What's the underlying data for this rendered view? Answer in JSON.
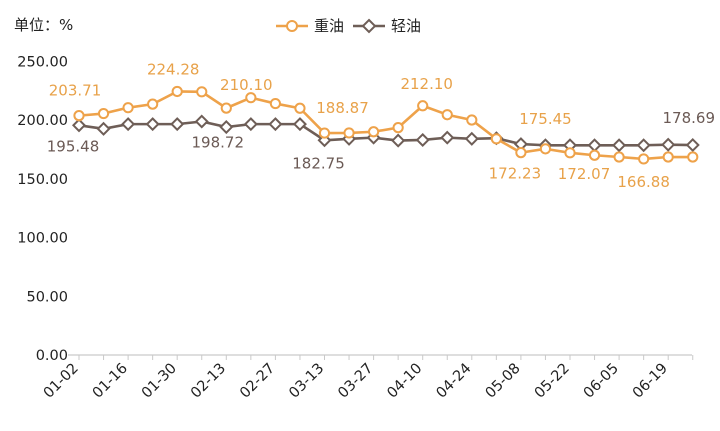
{
  "unit_label": "单位：%",
  "colors": {
    "heavy": "#eea24a",
    "light": "#6e5e57",
    "axis": "#c9c9c9"
  },
  "chart_data": {
    "type": "line",
    "title": "",
    "xlabel": "",
    "ylabel": "单位：%",
    "ylim": [
      0,
      250
    ],
    "yticks": [
      "0.00",
      "50.00",
      "100.00",
      "150.00",
      "200.00",
      "250.00"
    ],
    "x": [
      "01-02",
      "01-09",
      "01-16",
      "01-23",
      "01-30",
      "02-06",
      "02-13",
      "02-20",
      "02-27",
      "03-06",
      "03-13",
      "03-20",
      "03-27",
      "04-03",
      "04-10",
      "04-17",
      "04-24",
      "05-01",
      "05-08",
      "05-15",
      "05-22",
      "05-29",
      "06-05",
      "06-12",
      "06-19",
      "06-26"
    ],
    "xtick_labels": [
      "01-02",
      "01-16",
      "01-30",
      "02-13",
      "02-27",
      "03-13",
      "03-27",
      "04-10",
      "04-24",
      "05-08",
      "05-22",
      "06-05",
      "06-19"
    ],
    "legend_position": "top-center",
    "series": [
      {
        "name": "重油",
        "marker": "circle",
        "values": [
          203.71,
          205.5,
          210.5,
          213.5,
          224.28,
          224.0,
          210.1,
          219.0,
          214.0,
          210.0,
          188.87,
          189.0,
          190.0,
          193.5,
          212.1,
          204.5,
          200.0,
          184.0,
          172.23,
          175.45,
          172.07,
          170.0,
          168.5,
          166.88,
          168.5,
          168.5
        ],
        "data_labels": [
          {
            "index": 0,
            "text": "203.71"
          },
          {
            "index": 4,
            "text": "224.28"
          },
          {
            "index": 6,
            "text": "210.10"
          },
          {
            "index": 10,
            "text": "188.87"
          },
          {
            "index": 14,
            "text": "212.10"
          },
          {
            "index": 18,
            "text": "172.23"
          },
          {
            "index": 19,
            "text": "175.45"
          },
          {
            "index": 20,
            "text": "172.07"
          },
          {
            "index": 23,
            "text": "166.88"
          }
        ]
      },
      {
        "name": "轻油",
        "marker": "diamond",
        "values": [
          195.48,
          192.5,
          196.5,
          196.5,
          196.5,
          198.72,
          194.0,
          196.5,
          196.5,
          196.5,
          182.75,
          184.0,
          185.0,
          182.5,
          183.0,
          185.0,
          184.0,
          184.5,
          179.5,
          178.5,
          178.5,
          178.5,
          178.5,
          178.5,
          179.0,
          178.69
        ],
        "data_labels": [
          {
            "index": 0,
            "text": "195.48"
          },
          {
            "index": 5,
            "text": "198.72"
          },
          {
            "index": 10,
            "text": "182.75"
          },
          {
            "index": 25,
            "text": "178.69"
          }
        ]
      }
    ]
  }
}
